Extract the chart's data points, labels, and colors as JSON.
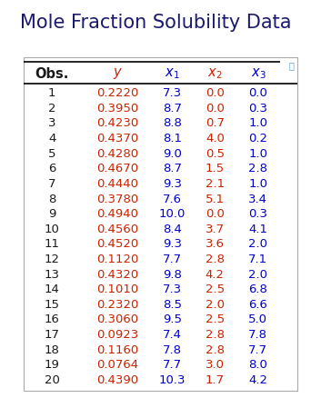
{
  "title": "Mole Fraction Solubility Data",
  "rows": [
    [
      "1",
      "0.2220",
      "7.3",
      "0.0",
      "0.0"
    ],
    [
      "2",
      "0.3950",
      "8.7",
      "0.0",
      "0.3"
    ],
    [
      "3",
      "0.4230",
      "8.8",
      "0.7",
      "1.0"
    ],
    [
      "4",
      "0.4370",
      "8.1",
      "4.0",
      "0.2"
    ],
    [
      "5",
      "0.4280",
      "9.0",
      "0.5",
      "1.0"
    ],
    [
      "6",
      "0.4670",
      "8.7",
      "1.5",
      "2.8"
    ],
    [
      "7",
      "0.4440",
      "9.3",
      "2.1",
      "1.0"
    ],
    [
      "8",
      "0.3780",
      "7.6",
      "5.1",
      "3.4"
    ],
    [
      "9",
      "0.4940",
      "10.0",
      "0.0",
      "0.3"
    ],
    [
      "10",
      "0.4560",
      "8.4",
      "3.7",
      "4.1"
    ],
    [
      "11",
      "0.4520",
      "9.3",
      "3.6",
      "2.0"
    ],
    [
      "12",
      "0.1120",
      "7.7",
      "2.8",
      "7.1"
    ],
    [
      "13",
      "0.4320",
      "9.8",
      "4.2",
      "2.0"
    ],
    [
      "14",
      "0.1010",
      "7.3",
      "2.5",
      "6.8"
    ],
    [
      "15",
      "0.2320",
      "8.5",
      "2.0",
      "6.6"
    ],
    [
      "16",
      "0.3060",
      "9.5",
      "2.5",
      "5.0"
    ],
    [
      "17",
      "0.0923",
      "7.4",
      "2.8",
      "7.8"
    ],
    [
      "18",
      "0.1160",
      "7.8",
      "2.8",
      "7.7"
    ],
    [
      "19",
      "0.0764",
      "7.7",
      "3.0",
      "8.0"
    ],
    [
      "20",
      "0.4390",
      "10.3",
      "1.7",
      "4.2"
    ]
  ],
  "title_color": "#1a1a6e",
  "title_fontsize": 15,
  "obs_color": "#1a1a1a",
  "col_y_color": "#cc2200",
  "col_x1_color": "#0000cc",
  "col_x2_color": "#cc2200",
  "col_x3_color": "#0000cc",
  "header_obs_color": "#1a1a1a",
  "header_y_color": "#cc2200",
  "header_x1_color": "#0000cc",
  "header_x2_color": "#cc2200",
  "header_x3_color": "#0000cc",
  "bg_color": "#ffffff",
  "table_border_color": "#aaaaaa",
  "header_line_color": "#000000",
  "data_fontsize": 9.5,
  "header_fontsize": 10.5,
  "icon_color": "#5599cc"
}
